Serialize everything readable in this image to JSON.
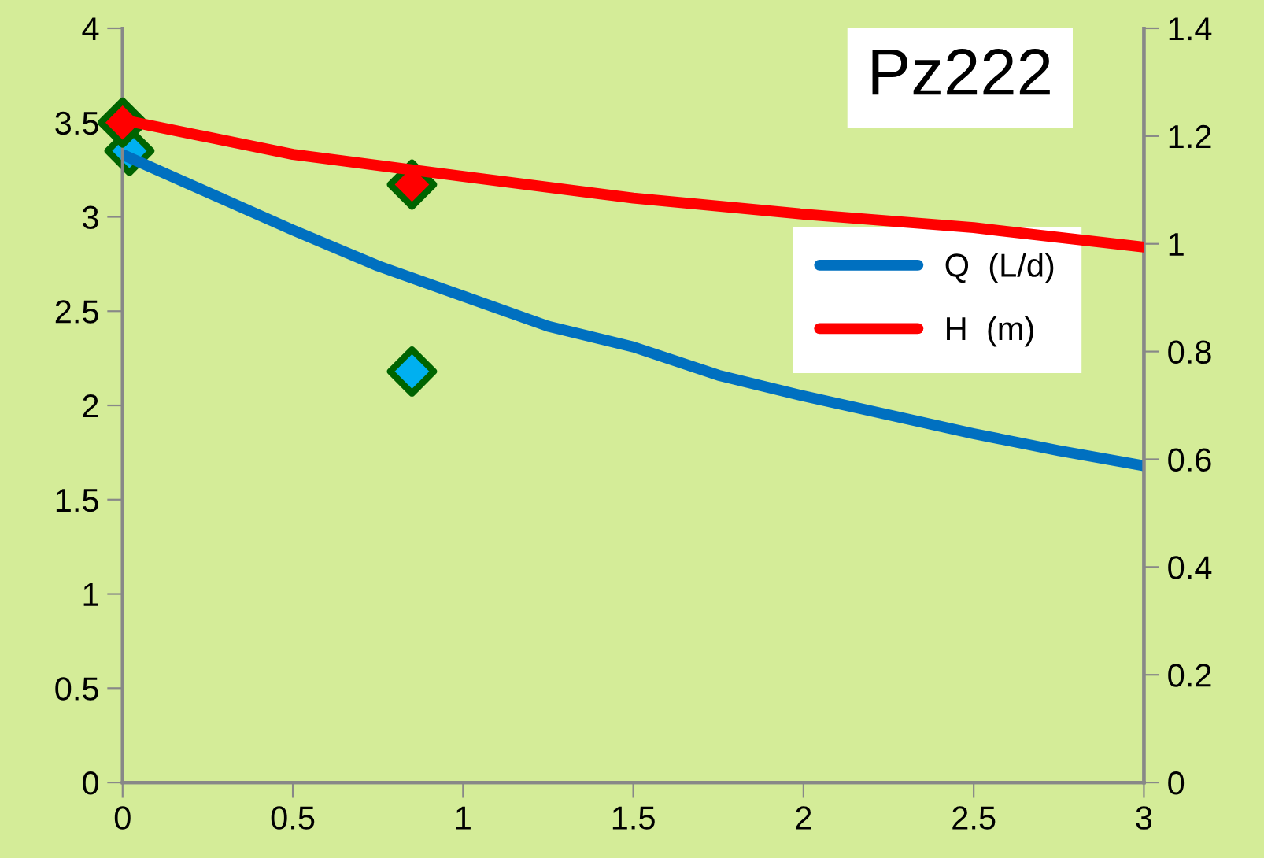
{
  "chart_data": {
    "type": "line",
    "title": "Pz222",
    "xlim": [
      0,
      3
    ],
    "xticks": [
      0,
      0.5,
      1,
      1.5,
      2,
      2.5,
      3
    ],
    "ylim": [
      0,
      4
    ],
    "yticks": [
      0,
      0.5,
      1,
      1.5,
      2,
      2.5,
      3,
      3.5,
      4
    ],
    "y2lim": [
      0,
      1.4
    ],
    "y2ticks": [
      0,
      0.2,
      0.4,
      0.6,
      0.8,
      1,
      1.2,
      1.4
    ],
    "grid": false,
    "legend": "right",
    "marker": "none",
    "line_style": "solid",
    "series": [
      {
        "name": "Q  (L/d)",
        "color": "#0070c0",
        "x": [
          0,
          0.25,
          0.5,
          0.75,
          1,
          1.25,
          1.5,
          1.75,
          2,
          2.25,
          2.5,
          2.75,
          3
        ],
        "values": [
          3.33,
          3.13,
          2.93,
          2.74,
          2.58,
          2.42,
          2.31,
          2.16,
          2.05,
          1.95,
          1.85,
          1.76,
          1.68
        ]
      },
      {
        "name": "H  (m)",
        "color": "#ff0000",
        "axis": "y2",
        "x": [
          0,
          0.5,
          1,
          1.5,
          2,
          2.5,
          3
        ],
        "values": [
          1.23,
          1.166,
          1.125,
          1.085,
          1.055,
          1.03,
          0.994
        ]
      },
      {
        "color": "#00b0f0",
        "type": "scatter",
        "marker": "diamond",
        "x": [
          0.02,
          0.85
        ],
        "values": [
          3.35,
          2.18
        ]
      },
      {
        "color": "#ff0000",
        "type": "scatter",
        "marker": "diamond",
        "axis": "y2",
        "x": [
          0,
          0.85
        ],
        "values": [
          1.225,
          1.11
        ]
      }
    ]
  }
}
